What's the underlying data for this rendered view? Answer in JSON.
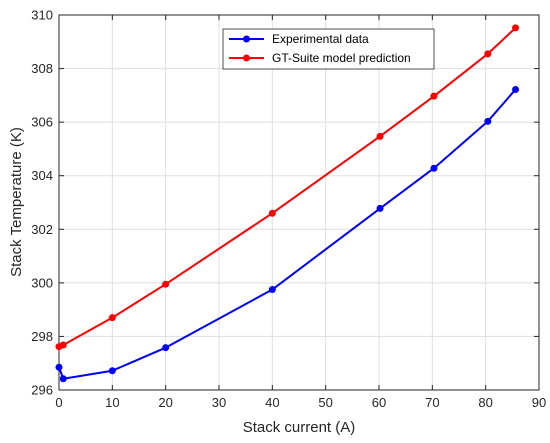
{
  "chart_data": {
    "type": "line",
    "xlabel": "Stack current (A)",
    "ylabel": "Stack Temperature (K)",
    "xlim": [
      0,
      90
    ],
    "ylim": [
      296,
      310
    ],
    "xticks": [
      0,
      10,
      20,
      30,
      40,
      50,
      60,
      70,
      80,
      90
    ],
    "yticks": [
      296,
      298,
      300,
      302,
      304,
      306,
      308,
      310
    ],
    "grid": true,
    "legend_position": "top-right",
    "series": [
      {
        "name": "Experimental data",
        "color": "#0000ff",
        "x": [
          0,
          0.8,
          10,
          20,
          40,
          60.2,
          70.3,
          80.4,
          85.6
        ],
        "y": [
          296.85,
          296.42,
          296.72,
          297.58,
          299.75,
          302.78,
          304.28,
          306.03,
          307.22
        ]
      },
      {
        "name": "GT-Suite model prediction",
        "color": "#ff0000",
        "x": [
          0,
          0.8,
          10,
          20,
          40,
          60.2,
          70.3,
          80.4,
          85.6
        ],
        "y": [
          297.62,
          297.68,
          298.7,
          299.95,
          302.6,
          305.47,
          306.97,
          308.55,
          309.52
        ]
      }
    ]
  }
}
